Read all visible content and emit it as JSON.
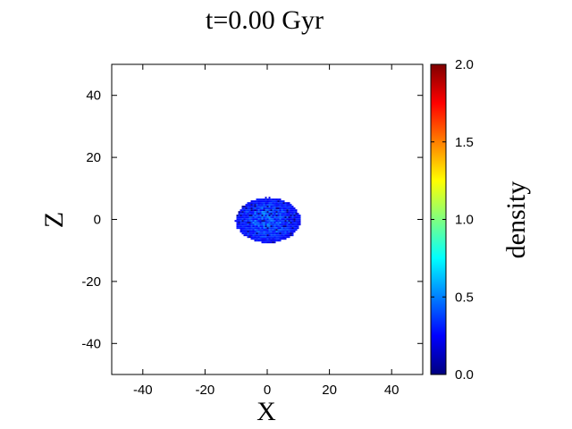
{
  "chart_data": {
    "type": "heatmap",
    "title": "t=0.00 Gyr",
    "xlabel": "X",
    "ylabel": "Z",
    "xlim": [
      -50,
      50
    ],
    "ylim": [
      -50,
      50
    ],
    "xticks": [
      -40,
      -20,
      0,
      20,
      40
    ],
    "yticks": [
      -40,
      -20,
      0,
      20,
      40
    ],
    "colorbar": {
      "label": "density",
      "range": [
        0.0,
        2.0
      ],
      "ticks": [
        "0.0",
        "0.5",
        "1.0",
        "1.5",
        "2.0"
      ],
      "colormap": "jet"
    },
    "object": {
      "shape": "ellipse",
      "center": [
        0,
        0
      ],
      "semi_axis_x": 10.5,
      "semi_axis_z": 7.3,
      "density_range": [
        0.05,
        0.6
      ]
    },
    "grid": false
  }
}
